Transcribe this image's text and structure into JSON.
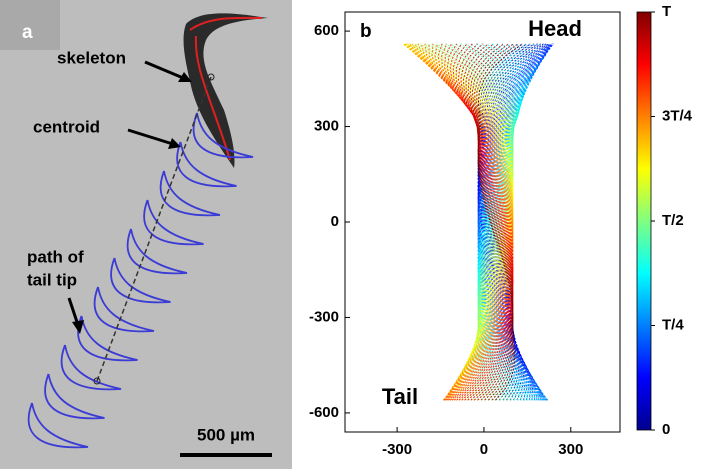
{
  "panel_a": {
    "label": "a",
    "annotations": {
      "skeleton": "skeleton",
      "centroid": "centroid",
      "tail_tip": [
        "path of",
        "tail tip"
      ]
    },
    "scale_bar": "500 µm"
  },
  "chart_data": {
    "type": "line",
    "panel_label": "b",
    "annotations": {
      "head": "Head",
      "tail": "Tail"
    },
    "xlim": [
      -480,
      470
    ],
    "ylim": [
      -660,
      660
    ],
    "xticks": [
      -300,
      0,
      300
    ],
    "yticks": [
      600,
      300,
      0,
      -300,
      -600
    ],
    "colorbar": {
      "clim": [
        0,
        1
      ],
      "ticks": [
        {
          "value": 1,
          "label": "T"
        },
        {
          "value": 0.75,
          "label": "3T/4"
        },
        {
          "value": 0.5,
          "label": "T/2"
        },
        {
          "value": 0.25,
          "label": "T/4"
        },
        0
      ]
    }
  }
}
